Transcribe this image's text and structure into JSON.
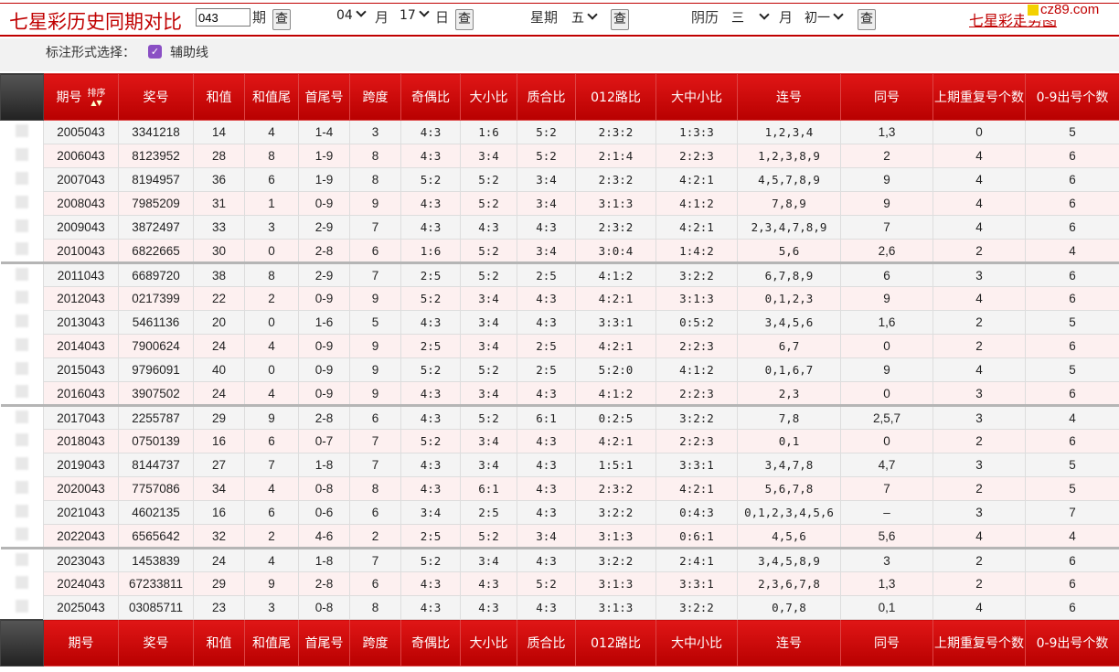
{
  "header": {
    "title": "七星彩历史同期对比",
    "period_value": "043",
    "period_label": "期",
    "query_label": "查",
    "month_value": "04",
    "month_label": "月",
    "day_value": "17",
    "day_label": "日",
    "weekday_label": "星期",
    "weekday_value": "五",
    "lunar_label": "阴历",
    "lunar_month_value": "三",
    "lunar_month_label": "月",
    "lunar_day_value": "初一",
    "right_link": "七星彩走势图",
    "logo_text": "cz89.com"
  },
  "options": {
    "label": "标注形式选择：",
    "checkbox_label": "辅助线",
    "checked": true
  },
  "table": {
    "headers": [
      "期号",
      "奖号",
      "和值",
      "和值尾",
      "首尾号",
      "跨度",
      "奇偶比",
      "大小比",
      "质合比",
      "012路比",
      "大中小比",
      "连号",
      "同号",
      "上期重复号个数",
      "0-9出号个数"
    ],
    "sort_label": "排序",
    "rows": [
      [
        "2005043",
        "3341218",
        "14",
        "4",
        "1-4",
        "3",
        "4:3",
        "1:6",
        "5:2",
        "2:3:2",
        "1:3:3",
        "1,2,3,4",
        "1,3",
        "0",
        "5"
      ],
      [
        "2006043",
        "8123952",
        "28",
        "8",
        "1-9",
        "8",
        "4:3",
        "3:4",
        "5:2",
        "2:1:4",
        "2:2:3",
        "1,2,3,8,9",
        "2",
        "4",
        "6"
      ],
      [
        "2007043",
        "8194957",
        "36",
        "6",
        "1-9",
        "8",
        "5:2",
        "5:2",
        "3:4",
        "2:3:2",
        "4:2:1",
        "4,5,7,8,9",
        "9",
        "4",
        "6"
      ],
      [
        "2008043",
        "7985209",
        "31",
        "1",
        "0-9",
        "9",
        "4:3",
        "5:2",
        "3:4",
        "3:1:3",
        "4:1:2",
        "7,8,9",
        "9",
        "4",
        "6"
      ],
      [
        "2009043",
        "3872497",
        "33",
        "3",
        "2-9",
        "7",
        "4:3",
        "4:3",
        "4:3",
        "2:3:2",
        "4:2:1",
        "2,3,4,7,8,9",
        "7",
        "4",
        "6"
      ],
      [
        "2010043",
        "6822665",
        "30",
        "0",
        "2-8",
        "6",
        "1:6",
        "5:2",
        "3:4",
        "3:0:4",
        "1:4:2",
        "5,6",
        "2,6",
        "2",
        "4"
      ],
      [
        "2011043",
        "6689720",
        "38",
        "8",
        "2-9",
        "7",
        "2:5",
        "5:2",
        "2:5",
        "4:1:2",
        "3:2:2",
        "6,7,8,9",
        "6",
        "3",
        "6"
      ],
      [
        "2012043",
        "0217399",
        "22",
        "2",
        "0-9",
        "9",
        "5:2",
        "3:4",
        "4:3",
        "4:2:1",
        "3:1:3",
        "0,1,2,3",
        "9",
        "4",
        "6"
      ],
      [
        "2013043",
        "5461136",
        "20",
        "0",
        "1-6",
        "5",
        "4:3",
        "3:4",
        "4:3",
        "3:3:1",
        "0:5:2",
        "3,4,5,6",
        "1,6",
        "2",
        "5"
      ],
      [
        "2014043",
        "7900624",
        "24",
        "4",
        "0-9",
        "9",
        "2:5",
        "3:4",
        "2:5",
        "4:2:1",
        "2:2:3",
        "6,7",
        "0",
        "2",
        "6"
      ],
      [
        "2015043",
        "9796091",
        "40",
        "0",
        "0-9",
        "9",
        "5:2",
        "5:2",
        "2:5",
        "5:2:0",
        "4:1:2",
        "0,1,6,7",
        "9",
        "4",
        "5"
      ],
      [
        "2016043",
        "3907502",
        "24",
        "4",
        "0-9",
        "9",
        "4:3",
        "3:4",
        "4:3",
        "4:1:2",
        "2:2:3",
        "2,3",
        "0",
        "3",
        "6"
      ],
      [
        "2017043",
        "2255787",
        "29",
        "9",
        "2-8",
        "6",
        "4:3",
        "5:2",
        "6:1",
        "0:2:5",
        "3:2:2",
        "7,8",
        "2,5,7",
        "3",
        "4"
      ],
      [
        "2018043",
        "0750139",
        "16",
        "6",
        "0-7",
        "7",
        "5:2",
        "3:4",
        "4:3",
        "4:2:1",
        "2:2:3",
        "0,1",
        "0",
        "2",
        "6"
      ],
      [
        "2019043",
        "8144737",
        "27",
        "7",
        "1-8",
        "7",
        "4:3",
        "3:4",
        "4:3",
        "1:5:1",
        "3:3:1",
        "3,4,7,8",
        "4,7",
        "3",
        "5"
      ],
      [
        "2020043",
        "7757086",
        "34",
        "4",
        "0-8",
        "8",
        "4:3",
        "6:1",
        "4:3",
        "2:3:2",
        "4:2:1",
        "5,6,7,8",
        "7",
        "2",
        "5"
      ],
      [
        "2021043",
        "4602135",
        "16",
        "6",
        "0-6",
        "6",
        "3:4",
        "2:5",
        "4:3",
        "3:2:2",
        "0:4:3",
        "0,1,2,3,4,5,6",
        "–",
        "3",
        "7"
      ],
      [
        "2022043",
        "6565642",
        "32",
        "2",
        "4-6",
        "2",
        "2:5",
        "5:2",
        "3:4",
        "3:1:3",
        "0:6:1",
        "4,5,6",
        "5,6",
        "4",
        "4"
      ],
      [
        "2023043",
        "1453839",
        "24",
        "4",
        "1-8",
        "7",
        "5:2",
        "3:4",
        "4:3",
        "3:2:2",
        "2:4:1",
        "3,4,5,8,9",
        "3",
        "2",
        "6"
      ],
      [
        "2024043",
        "67233811",
        "29",
        "9",
        "2-8",
        "6",
        "4:3",
        "4:3",
        "5:2",
        "3:1:3",
        "3:3:1",
        "2,3,6,7,8",
        "1,3",
        "2",
        "6"
      ],
      [
        "2025043",
        "03085711",
        "23",
        "3",
        "0-8",
        "8",
        "4:3",
        "4:3",
        "4:3",
        "3:1:3",
        "3:2:2",
        "0,7,8",
        "0,1",
        "4",
        "6"
      ]
    ]
  },
  "colors": {
    "brand_red": "#c00000",
    "header_bg": "#d00000",
    "row_odd": "#f4f4f4",
    "row_even": "#fdf0f0",
    "checkbox": "#8a4fc4"
  }
}
